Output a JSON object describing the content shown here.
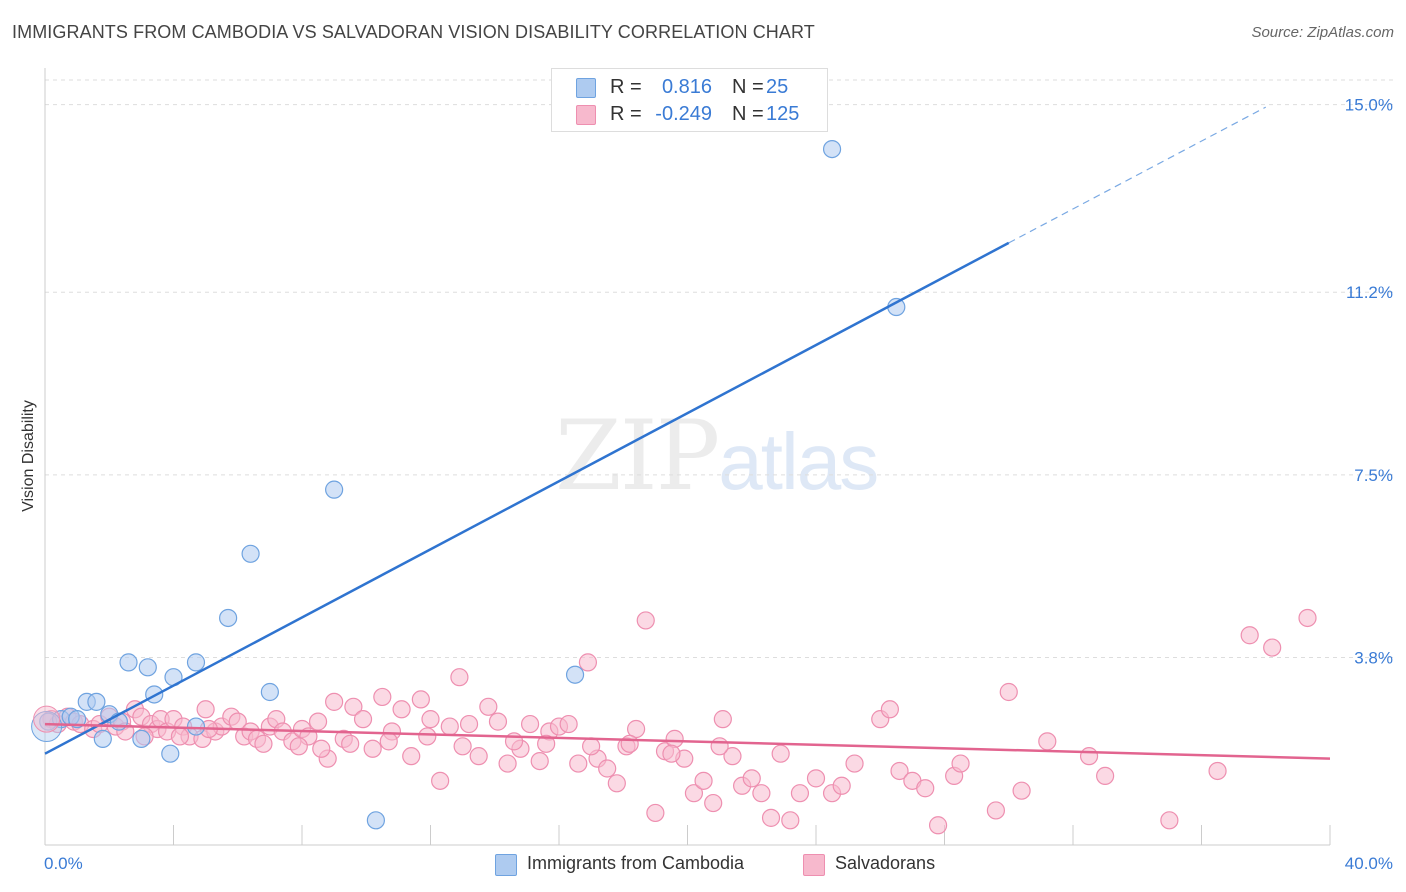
{
  "title": "IMMIGRANTS FROM CAMBODIA VS SALVADORAN VISION DISABILITY CORRELATION CHART",
  "source": "Source: ZipAtlas.com",
  "watermark": {
    "zip": "ZIP",
    "atlas": "atlas"
  },
  "legend": {
    "rows": [
      {
        "r_label": "R =",
        "r_value": "0.816",
        "n_label": "N =",
        "n_value": "25",
        "color": "#aecbf0"
      },
      {
        "r_label": "R =",
        "r_value": "-0.249",
        "n_label": "N =",
        "n_value": "125",
        "color": "#f7b9cd"
      }
    ]
  },
  "bottom_legend": [
    {
      "label": "Immigrants from Cambodia",
      "color": "#aecbf0"
    },
    {
      "label": "Salvadorans",
      "color": "#f7b9cd"
    }
  ],
  "chart_data": {
    "type": "scatter",
    "title": "IMMIGRANTS FROM CAMBODIA VS SALVADORAN VISION DISABILITY CORRELATION CHART",
    "ylabel": "Vision Disability",
    "xlabel": "",
    "xlim": [
      0,
      40
    ],
    "ylim": [
      0,
      15.5
    ],
    "x_tick_labels": [
      "0.0%",
      "40.0%"
    ],
    "y_ticks": [
      3.8,
      7.5,
      11.2,
      15.0
    ],
    "y_tick_labels": [
      "3.8%",
      "7.5%",
      "11.2%",
      "15.0%"
    ],
    "grid": "horizontal dashed",
    "legend_position": "top-center",
    "series": [
      {
        "name": "Immigrants from Cambodia",
        "color": "#6fa3e0",
        "fill": "#aecbf0",
        "trend": {
          "x0": 0,
          "y0": 1.85,
          "x1": 30,
          "y1": 12.2,
          "dashed_to_x": 38,
          "dashed_to_y": 14.95
        },
        "points": [
          [
            0.1,
            2.5
          ],
          [
            0.5,
            2.55
          ],
          [
            0.8,
            2.6
          ],
          [
            1.0,
            2.55
          ],
          [
            1.3,
            2.9
          ],
          [
            1.6,
            2.9
          ],
          [
            1.8,
            2.15
          ],
          [
            2.0,
            2.65
          ],
          [
            2.3,
            2.5
          ],
          [
            2.6,
            3.7
          ],
          [
            3.0,
            2.15
          ],
          [
            3.2,
            3.6
          ],
          [
            3.4,
            3.05
          ],
          [
            3.9,
            1.85
          ],
          [
            4.0,
            3.4
          ],
          [
            4.7,
            3.7
          ],
          [
            4.7,
            2.4
          ],
          [
            5.7,
            4.6
          ],
          [
            6.4,
            5.9
          ],
          [
            7.0,
            3.1
          ],
          [
            9.0,
            7.2
          ],
          [
            10.3,
            0.5
          ],
          [
            16.5,
            3.45
          ],
          [
            24.5,
            14.1
          ],
          [
            26.5,
            10.9
          ]
        ]
      },
      {
        "name": "Salvadorans",
        "color": "#ee8fb0",
        "fill": "#f7b9cd",
        "trend": {
          "x0": 0,
          "y0": 2.45,
          "x1": 40,
          "y1": 1.75
        },
        "points": [
          [
            0.2,
            2.55
          ],
          [
            0.4,
            2.45
          ],
          [
            0.7,
            2.6
          ],
          [
            0.9,
            2.5
          ],
          [
            1.1,
            2.45
          ],
          [
            1.5,
            2.35
          ],
          [
            1.7,
            2.45
          ],
          [
            2.0,
            2.6
          ],
          [
            2.2,
            2.4
          ],
          [
            2.4,
            2.5
          ],
          [
            2.8,
            2.75
          ],
          [
            3.0,
            2.6
          ],
          [
            3.3,
            2.45
          ],
          [
            3.5,
            2.35
          ],
          [
            3.6,
            2.55
          ],
          [
            3.8,
            2.3
          ],
          [
            4.0,
            2.55
          ],
          [
            4.3,
            2.4
          ],
          [
            4.5,
            2.2
          ],
          [
            4.9,
            2.15
          ],
          [
            5.0,
            2.75
          ],
          [
            5.3,
            2.3
          ],
          [
            5.5,
            2.4
          ],
          [
            5.8,
            2.6
          ],
          [
            6.0,
            2.5
          ],
          [
            6.2,
            2.2
          ],
          [
            6.4,
            2.3
          ],
          [
            6.6,
            2.15
          ],
          [
            7.0,
            2.4
          ],
          [
            7.2,
            2.55
          ],
          [
            7.4,
            2.3
          ],
          [
            7.7,
            2.1
          ],
          [
            8.0,
            2.35
          ],
          [
            8.2,
            2.2
          ],
          [
            8.5,
            2.5
          ],
          [
            8.8,
            1.75
          ],
          [
            9.0,
            2.9
          ],
          [
            9.3,
            2.15
          ],
          [
            9.6,
            2.8
          ],
          [
            9.9,
            2.55
          ],
          [
            10.2,
            1.95
          ],
          [
            10.5,
            3.0
          ],
          [
            10.8,
            2.3
          ],
          [
            11.1,
            2.75
          ],
          [
            11.4,
            1.8
          ],
          [
            11.7,
            2.95
          ],
          [
            12.0,
            2.55
          ],
          [
            12.3,
            1.3
          ],
          [
            12.6,
            2.4
          ],
          [
            12.9,
            3.4
          ],
          [
            13.2,
            2.45
          ],
          [
            13.5,
            1.8
          ],
          [
            13.8,
            2.8
          ],
          [
            14.1,
            2.5
          ],
          [
            14.4,
            1.65
          ],
          [
            14.8,
            1.95
          ],
          [
            15.1,
            2.45
          ],
          [
            15.4,
            1.7
          ],
          [
            15.7,
            2.3
          ],
          [
            16.0,
            2.4
          ],
          [
            16.3,
            2.45
          ],
          [
            16.6,
            1.65
          ],
          [
            16.9,
            3.7
          ],
          [
            17.2,
            1.75
          ],
          [
            17.5,
            1.55
          ],
          [
            17.8,
            1.25
          ],
          [
            18.1,
            2.0
          ],
          [
            18.4,
            2.35
          ],
          [
            18.7,
            4.55
          ],
          [
            19.0,
            0.65
          ],
          [
            19.3,
            1.9
          ],
          [
            19.6,
            2.15
          ],
          [
            19.9,
            1.75
          ],
          [
            20.2,
            1.05
          ],
          [
            20.5,
            1.3
          ],
          [
            20.8,
            0.85
          ],
          [
            21.1,
            2.55
          ],
          [
            21.4,
            1.8
          ],
          [
            21.7,
            1.2
          ],
          [
            22.0,
            1.35
          ],
          [
            22.3,
            1.05
          ],
          [
            22.6,
            0.55
          ],
          [
            22.9,
            1.85
          ],
          [
            23.2,
            0.5
          ],
          [
            23.5,
            1.05
          ],
          [
            24.0,
            1.35
          ],
          [
            24.5,
            1.05
          ],
          [
            25.2,
            1.65
          ],
          [
            26.0,
            2.55
          ],
          [
            26.3,
            2.75
          ],
          [
            26.6,
            1.5
          ],
          [
            27.0,
            1.3
          ],
          [
            27.4,
            1.15
          ],
          [
            27.8,
            0.4
          ],
          [
            28.3,
            1.4
          ],
          [
            29.6,
            0.7
          ],
          [
            30.4,
            1.1
          ],
          [
            30.0,
            3.1
          ],
          [
            31.2,
            2.1
          ],
          [
            32.5,
            1.8
          ],
          [
            33.0,
            1.4
          ],
          [
            35.0,
            0.5
          ],
          [
            36.5,
            1.5
          ],
          [
            37.5,
            4.25
          ],
          [
            38.2,
            4.0
          ],
          [
            39.3,
            4.6
          ],
          [
            2.5,
            2.3
          ],
          [
            3.1,
            2.2
          ],
          [
            4.2,
            2.2
          ],
          [
            5.1,
            2.35
          ],
          [
            6.8,
            2.05
          ],
          [
            7.9,
            2.0
          ],
          [
            8.6,
            1.95
          ],
          [
            9.5,
            2.05
          ],
          [
            10.7,
            2.1
          ],
          [
            11.9,
            2.2
          ],
          [
            13.0,
            2.0
          ],
          [
            14.6,
            2.1
          ],
          [
            15.6,
            2.05
          ],
          [
            17.0,
            2.0
          ],
          [
            18.2,
            2.05
          ],
          [
            19.5,
            1.85
          ],
          [
            21.0,
            2.0
          ],
          [
            24.8,
            1.2
          ],
          [
            28.5,
            1.65
          ]
        ]
      }
    ]
  }
}
